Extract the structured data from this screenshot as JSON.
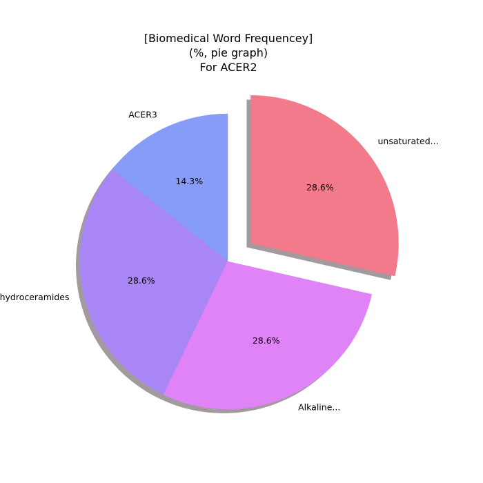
{
  "chart_data": {
    "type": "pie",
    "title_lines": [
      "[Biomedical Word Frequencey]",
      "(%, pie graph)",
      "For ACER2"
    ],
    "slices": [
      {
        "label": "ACER3",
        "value": 14.3,
        "pct_label": "14.3%",
        "color": "#879cf7",
        "explode": false
      },
      {
        "label": "dihydroceramides",
        "value": 28.6,
        "pct_label": "28.6%",
        "color": "#a986f5",
        "explode": false
      },
      {
        "label": "Alkaline...",
        "value": 28.6,
        "pct_label": "28.6%",
        "color": "#df83f7",
        "explode": false
      },
      {
        "label": "unsaturated...",
        "value": 28.6,
        "pct_label": "28.6%",
        "color": "#f27a8a",
        "explode": true
      }
    ],
    "shadow": true,
    "shadow_color": "#a39aa0"
  }
}
